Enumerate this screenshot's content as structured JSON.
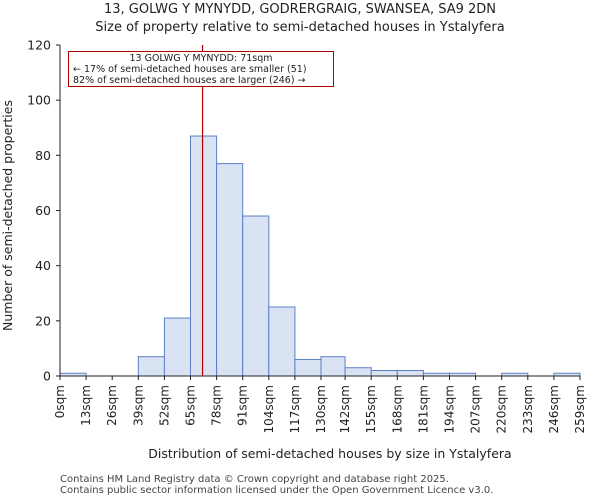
{
  "header": {
    "line1": "13, GOLWG Y MYNYDD, GODRERGRAIG, SWANSEA, SA9 2DN",
    "line2": "Size of property relative to semi-detached houses in Ystalyfera"
  },
  "footer": {
    "line1": "Contains HM Land Registry data © Crown copyright and database right 2025.",
    "line2": "Contains public sector information licensed under the Open Government Licence v3.0."
  },
  "annotation": {
    "title": "13 GOLWG Y MYNYDD: 71sqm",
    "smaller": "← 17% of semi-detached houses are smaller (51)",
    "larger": "82% of semi-detached houses are larger (246) →"
  },
  "chart_data": {
    "type": "bar",
    "xlabel": "Distribution of semi-detached houses by size in Ystalyfera",
    "ylabel": "Number of semi-detached properties",
    "ylim": [
      0,
      120
    ],
    "yticks": [
      0,
      20,
      40,
      60,
      80,
      100,
      120
    ],
    "bin_edges": [
      0,
      13,
      26,
      39,
      52,
      65,
      78,
      91,
      104,
      117,
      130,
      142,
      155,
      168,
      181,
      194,
      207,
      220,
      233,
      246,
      259
    ],
    "tick_labels": [
      "0sqm",
      "13sqm",
      "26sqm",
      "39sqm",
      "52sqm",
      "65sqm",
      "78sqm",
      "91sqm",
      "104sqm",
      "117sqm",
      "130sqm",
      "142sqm",
      "155sqm",
      "168sqm",
      "181sqm",
      "194sqm",
      "207sqm",
      "220sqm",
      "233sqm",
      "246sqm",
      "259sqm"
    ],
    "values": [
      1,
      0,
      0,
      7,
      21,
      87,
      77,
      58,
      25,
      6,
      7,
      3,
      2,
      2,
      1,
      1,
      0,
      1,
      0,
      1
    ],
    "marker_value": 71,
    "colors": {
      "bar_fill": "#dae3f4",
      "bar_edge": "#5b7fc7",
      "marker": "#b00000"
    }
  }
}
